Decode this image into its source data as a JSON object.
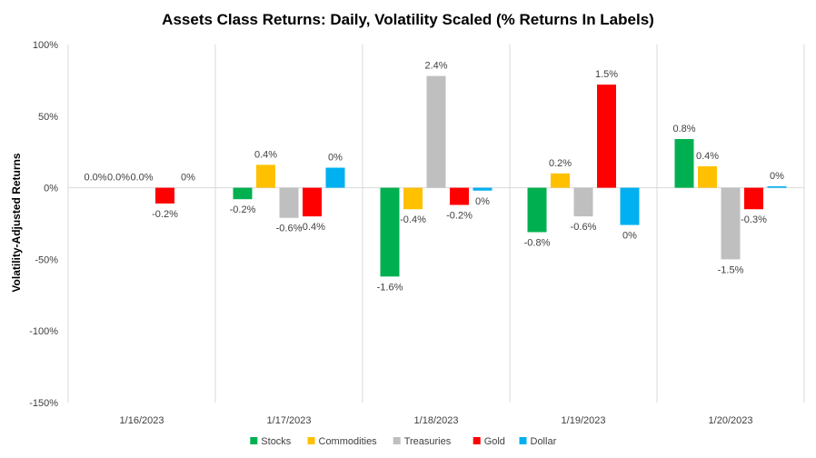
{
  "chart_data": {
    "type": "bar",
    "title": "Assets Class Returns: Daily, Volatility Scaled (% Returns In Labels)",
    "xlabel": "",
    "ylabel": "Volatility-Adjusted Returns",
    "ylim": [
      -150,
      100
    ],
    "yticks": [
      100,
      50,
      0,
      -50,
      -100,
      -150
    ],
    "ytick_labels": [
      "100%",
      "50%",
      "0%",
      "-50%",
      "-100%",
      "-150%"
    ],
    "grid": "vertical separators between categories",
    "legend": "bottom",
    "categories": [
      "1/16/2023",
      "1/17/2023",
      "1/18/2023",
      "1/19/2023",
      "1/20/2023"
    ],
    "series": [
      {
        "name": "Stocks",
        "color": "#00B050",
        "values": [
          0,
          -8,
          -62,
          -31,
          34
        ],
        "labels": [
          "0.0%",
          "-0.2%",
          "-1.6%",
          "-0.8%",
          "0.8%"
        ]
      },
      {
        "name": "Commodities",
        "color": "#FFC000",
        "values": [
          0,
          16,
          -15,
          10,
          15
        ],
        "labels": [
          "0.0%",
          "0.4%",
          "-0.4%",
          "0.2%",
          "0.4%"
        ]
      },
      {
        "name": "Treasuries",
        "color": "#BFBFBF",
        "values": [
          0,
          -21,
          78,
          -20,
          -50
        ],
        "labels": [
          "0.0%",
          "-0.6%",
          "2.4%",
          "-0.6%",
          "-1.5%"
        ]
      },
      {
        "name": "Gold",
        "color": "#FF0000",
        "values": [
          -11,
          -20,
          -12,
          72,
          -15
        ],
        "labels": [
          "-0.2%",
          "-0.4%",
          "-0.2%",
          "1.5%",
          "-0.3%"
        ]
      },
      {
        "name": "Dollar",
        "color": "#00B0F0",
        "values": [
          0,
          14,
          -2,
          -26,
          1
        ],
        "labels": [
          "0%",
          "0%",
          "0%",
          "0%",
          "0%"
        ]
      }
    ]
  }
}
